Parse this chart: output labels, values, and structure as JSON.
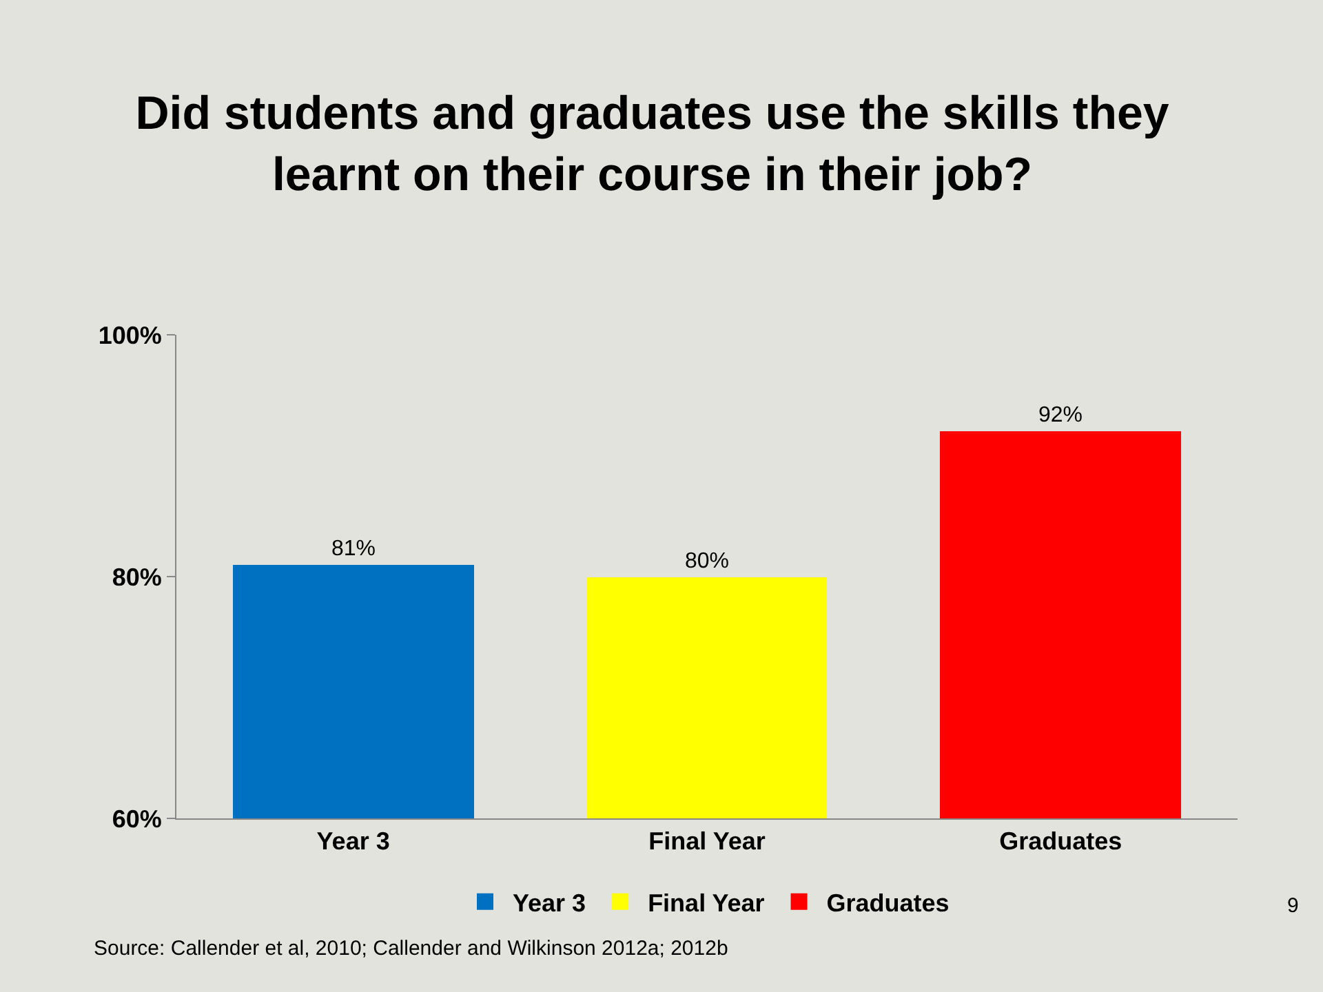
{
  "chart_data": {
    "type": "bar",
    "title": "Did students and graduates use the skills they learnt on their course in their job?",
    "categories": [
      "Year 3",
      "Final Year",
      "Graduates"
    ],
    "series": [
      {
        "name": "Year 3",
        "color": "#0070c0",
        "values": [
          81,
          null,
          null
        ],
        "value_labels": [
          "81%",
          null,
          null
        ]
      },
      {
        "name": "Final Year",
        "color": "#ffff00",
        "values": [
          null,
          80,
          null
        ],
        "value_labels": [
          null,
          "80%",
          null
        ]
      },
      {
        "name": "Graduates",
        "color": "#ff0000",
        "values": [
          null,
          null,
          92
        ],
        "value_labels": [
          null,
          null,
          "92%"
        ]
      }
    ],
    "ylim": [
      60,
      100
    ],
    "yticks": [
      {
        "value": 60,
        "label": "60%"
      },
      {
        "value": 80,
        "label": "80%"
      },
      {
        "value": 100,
        "label": "100%"
      }
    ],
    "grid": false,
    "legend": "bottom",
    "annotations": [
      "Source: Callender et al, 2010; Callender and Wilkinson 2012a; 2012b",
      "9"
    ]
  }
}
